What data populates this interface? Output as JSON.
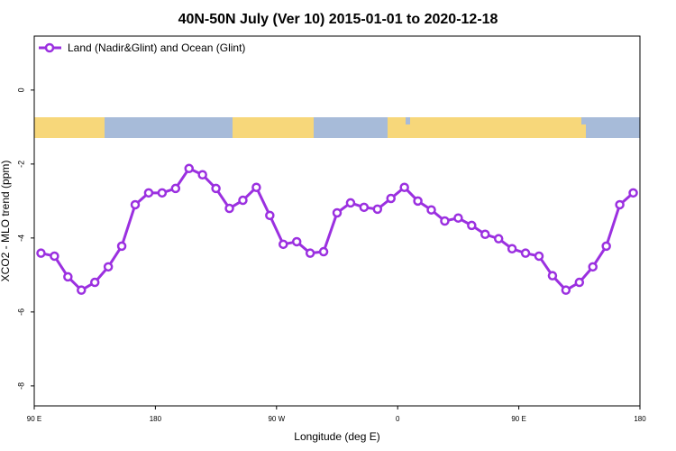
{
  "chart_data": {
    "type": "line",
    "title": "40N-50N July (Ver 10)   2015-01-01 to 2020-12-18",
    "x_label": "Longitude (deg E)",
    "y_label": "XCO2 - MLO trend (ppm)",
    "x": [
      95,
      105,
      115,
      125,
      135,
      145,
      155,
      165,
      175,
      185,
      195,
      205,
      215,
      225,
      235,
      245,
      255,
      265,
      275,
      285,
      295,
      305,
      315,
      325,
      335,
      345,
      355,
      365,
      375,
      385,
      395,
      405,
      415,
      425,
      435,
      445,
      455,
      465,
      475,
      485,
      495,
      505,
      515,
      525,
      535
    ],
    "series": [
      {
        "name": "Land (Nadir&Glint) and Ocean (Glint)",
        "color": "#9b30e0",
        "values": [
          -4.41,
          -4.49,
          -5.05,
          -5.41,
          -5.2,
          -4.78,
          -4.22,
          -3.1,
          -2.78,
          -2.78,
          -2.66,
          -2.12,
          -2.29,
          -2.66,
          -3.2,
          -2.98,
          -2.63,
          -3.39,
          -4.17,
          -4.1,
          -4.41,
          -4.37,
          -3.32,
          -3.05,
          -3.17,
          -3.22,
          -2.93,
          -2.63,
          -3.0,
          -3.24,
          -3.54,
          -3.46,
          -3.66,
          -3.9,
          -4.02,
          -4.29,
          -4.41,
          -4.49,
          -5.02,
          -5.41,
          -5.2,
          -4.78,
          -4.22,
          -3.1,
          -2.78
        ]
      }
    ],
    "xlim": [
      90,
      540
    ],
    "xticks": [
      {
        "value": 90,
        "label": "90 E"
      },
      180,
      {
        "value": 270,
        "label": "90 W"
      },
      {
        "value": 360,
        "label": "0"
      },
      {
        "value": 450,
        "label": "90 E"
      },
      {
        "value": 540,
        "label": "180"
      }
    ],
    "ylim": [
      -8.54,
      1.46
    ],
    "yticks": [
      0,
      -2,
      -4,
      -6,
      -8
    ],
    "legend_position": "top-left"
  }
}
